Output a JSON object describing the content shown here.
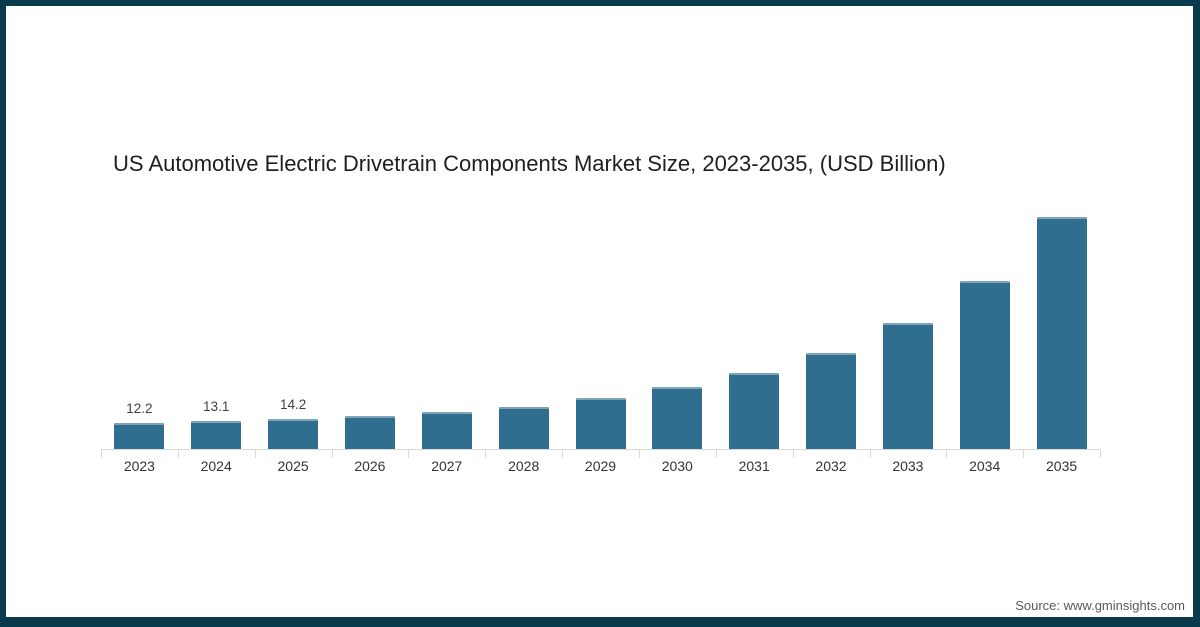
{
  "frame": {
    "border_color": "#0a3b4c",
    "background_color": "#ffffff"
  },
  "title": "US Automotive Electric Drivetrain Components Market Size, 2023-2035, (USD Billion)",
  "source": "Source: www.gminsights.com",
  "chart_data": {
    "type": "bar",
    "title": "US Automotive Electric Drivetrain Components Market Size, 2023-2035, (USD Billion)",
    "xlabel": "",
    "ylabel": "",
    "categories": [
      "2023",
      "2024",
      "2025",
      "2026",
      "2027",
      "2028",
      "2029",
      "2030",
      "2031",
      "2032",
      "2033",
      "2034",
      "2035"
    ],
    "values": [
      12.2,
      13.1,
      14.2,
      15.5,
      17.6,
      19.9,
      23.9,
      29.1,
      35.9,
      45.3,
      59.1,
      78.8,
      108.9
    ],
    "data_labels": [
      "12.2",
      "13.1",
      "14.2",
      "",
      "",
      "",
      "",
      "",
      "",
      "",
      "",
      "",
      ""
    ],
    "ylim": [
      0,
      117
    ],
    "grid": false,
    "legend": "none",
    "bar_color": "#2f6e8e",
    "bar_top_edge_color": "#7fa3b8",
    "axis_color": "#d9d9d9",
    "label_color": "#404040",
    "tick_label_color": "#333333"
  }
}
